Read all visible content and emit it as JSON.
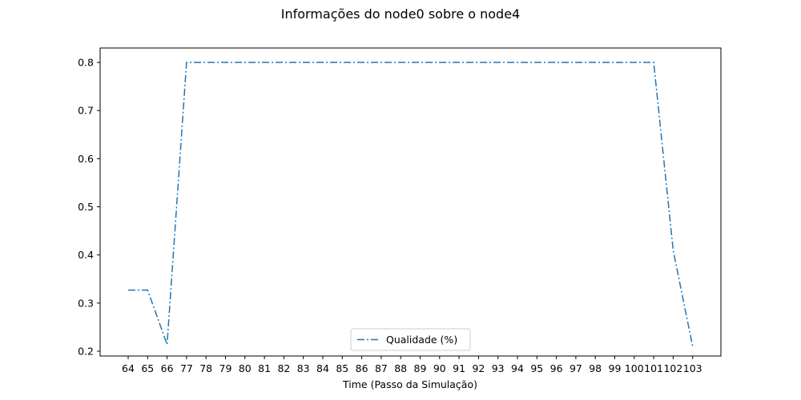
{
  "chart_data": {
    "type": "line",
    "title": "Informações do node0 sobre o node4",
    "xlabel": "Time (Passo da Simulação)",
    "ylabel": "",
    "categories": [
      "64",
      "65",
      "66",
      "77",
      "78",
      "79",
      "80",
      "81",
      "82",
      "83",
      "84",
      "85",
      "86",
      "87",
      "88",
      "89",
      "90",
      "91",
      "92",
      "93",
      "94",
      "95",
      "96",
      "97",
      "98",
      "99",
      "100",
      "101",
      "102",
      "103"
    ],
    "series": [
      {
        "name": "Qualidade (%)",
        "color": "#1f77b4",
        "line_style": "dash-dot",
        "values": [
          0.327,
          0.327,
          0.214,
          0.8,
          0.8,
          0.8,
          0.8,
          0.8,
          0.8,
          0.8,
          0.8,
          0.8,
          0.8,
          0.8,
          0.8,
          0.8,
          0.8,
          0.8,
          0.8,
          0.8,
          0.8,
          0.8,
          0.8,
          0.8,
          0.8,
          0.8,
          0.8,
          0.8,
          0.41,
          0.21
        ]
      }
    ],
    "ylim": [
      0.19,
      0.83
    ],
    "yticks": [
      0.2,
      0.3,
      0.4,
      0.5,
      0.6,
      0.7,
      0.8
    ],
    "ytick_labels": [
      "0.2",
      "0.3",
      "0.4",
      "0.5",
      "0.6",
      "0.7",
      "0.8"
    ],
    "grid": false,
    "legend_position": "lower-center"
  }
}
